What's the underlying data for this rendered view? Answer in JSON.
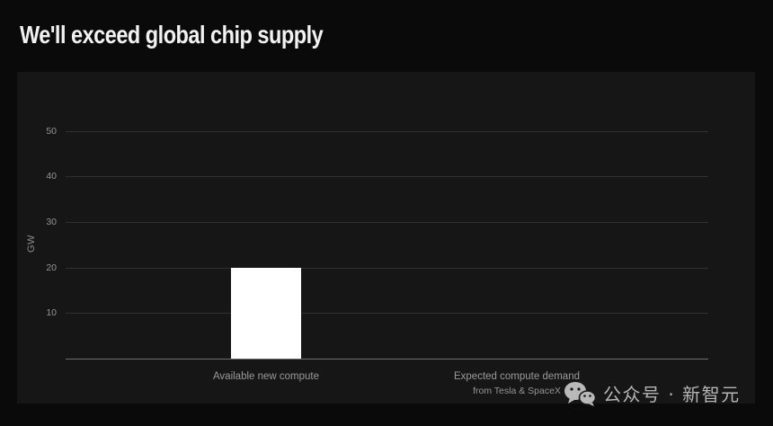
{
  "title": "We'll exceed global chip supply",
  "chart_data": {
    "type": "bar",
    "title": "We'll exceed global chip supply",
    "categories": [
      "Available new compute",
      "Expected compute demand from Tesla & SpaceX"
    ],
    "values": [
      20,
      null
    ],
    "ylabel": "GW",
    "yticks": [
      10,
      20,
      30,
      40,
      50
    ],
    "ylim": [
      0,
      55
    ],
    "grid": true,
    "legend": false,
    "bar_color": "#ffffff"
  },
  "axis": {
    "ylabel": "GW",
    "xlabel1": "Available new compute",
    "xlabel2_line1": "Expected compute demand",
    "xlabel2_line2": "from Tesla & SpaceX"
  },
  "watermark": {
    "icon": "wechat-icon",
    "text": "公众号 · 新智元"
  },
  "colors": {
    "page_bg": "#0a0a0a",
    "panel_bg": "#161616",
    "grid": "#303030",
    "axis_line": "#6f6f6f",
    "tick_text": "#949494",
    "title_text": "#f2f2f2",
    "bar": "#ffffff",
    "watermark_text": "#b5b5b5"
  }
}
